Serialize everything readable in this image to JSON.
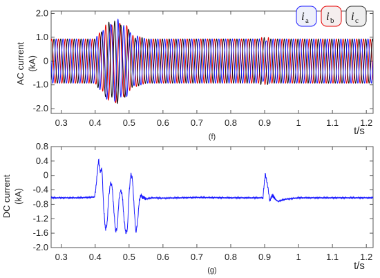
{
  "chart_data": [
    {
      "type": "line",
      "caption": "(f)",
      "ylabel_line1": "AC current",
      "ylabel_line2": "(kA)",
      "xlabel": "t/s",
      "xlim": [
        0.27,
        1.22
      ],
      "ylim": [
        -2.2,
        2.1
      ],
      "x_ticks": [
        0.3,
        0.4,
        0.5,
        0.6,
        0.7,
        0.8,
        0.9,
        1.0,
        1.1,
        1.2
      ],
      "x_tick_labels": [
        "0.3",
        "0.4",
        "0.5",
        "0.6",
        "0.7",
        "0.8",
        "0.9",
        "1",
        "1.1",
        "1.2"
      ],
      "y_ticks": [
        2.0,
        1.0,
        0,
        -1.0,
        -2.0
      ],
      "y_tick_labels": [
        "2.0",
        "1.0",
        "0",
        "-1.0",
        "-2.0"
      ],
      "grid": false,
      "legend_position": "top-right",
      "frequency_hz": 50,
      "steady_amplitude_kA": 0.93,
      "fault_start_s": 0.4,
      "fault_end_s": 0.52,
      "fault_peak_amplitude_kA": 1.8,
      "minor_disturbance_s": 0.9,
      "series": [
        {
          "name": "i",
          "subscript": "a",
          "color": "#1a1aff",
          "phase_deg": 0
        },
        {
          "name": "i",
          "subscript": "b",
          "color": "#e60000",
          "phase_deg": -120
        },
        {
          "name": "i",
          "subscript": "c",
          "color": "#111111",
          "phase_deg": 120
        }
      ]
    },
    {
      "type": "line",
      "caption": "(g)",
      "ylabel_line1": "DC current",
      "ylabel_line2": "(kA)",
      "xlabel": "t/s",
      "xlim": [
        0.27,
        1.22
      ],
      "ylim": [
        -2.0,
        0.8
      ],
      "x_ticks": [
        0.3,
        0.4,
        0.5,
        0.6,
        0.7,
        0.8,
        0.9,
        1.0,
        1.1,
        1.2
      ],
      "x_tick_labels": [
        "0.3",
        "0.4",
        "0.5",
        "0.6",
        "0.7",
        "0.8",
        "0.9",
        "1",
        "1.1",
        "1.2"
      ],
      "y_ticks": [
        0.8,
        0.4,
        0,
        -0.4,
        -0.8,
        -1.2,
        -1.6,
        -2.0
      ],
      "y_tick_labels": [
        "0.8",
        "0.4",
        "0",
        "-0.4",
        "-0.8",
        "-1.2",
        "-1.6",
        "-2.0"
      ],
      "grid": false,
      "series": [
        {
          "color": "#1a1aff",
          "x": [
            0.27,
            0.3,
            0.35,
            0.398,
            0.402,
            0.41,
            0.415,
            0.42,
            0.425,
            0.43,
            0.435,
            0.44,
            0.445,
            0.45,
            0.455,
            0.46,
            0.465,
            0.47,
            0.475,
            0.48,
            0.485,
            0.49,
            0.495,
            0.5,
            0.505,
            0.51,
            0.515,
            0.52,
            0.525,
            0.53,
            0.535,
            0.54,
            0.55,
            0.57,
            0.6,
            0.7,
            0.8,
            0.895,
            0.898,
            0.902,
            0.905,
            0.91,
            0.915,
            0.92,
            0.925,
            0.93,
            0.94,
            0.96,
            1.0,
            1.1,
            1.22
          ],
          "y": [
            -0.62,
            -0.62,
            -0.62,
            -0.6,
            -0.35,
            0.45,
            0.1,
            0.2,
            -0.9,
            -1.5,
            -1.35,
            -0.6,
            -0.2,
            -0.3,
            -0.95,
            -1.55,
            -1.45,
            -0.7,
            -0.4,
            -0.55,
            -1.2,
            -1.6,
            -1.5,
            -0.5,
            0.05,
            -0.1,
            -0.9,
            -1.6,
            -1.3,
            -0.7,
            -0.55,
            -0.6,
            -0.65,
            -0.62,
            -0.63,
            -0.61,
            -0.62,
            -0.62,
            -0.3,
            0.05,
            -0.1,
            -0.35,
            -0.7,
            -0.6,
            -0.55,
            -0.65,
            -0.72,
            -0.66,
            -0.62,
            -0.62,
            -0.62
          ]
        }
      ]
    }
  ]
}
